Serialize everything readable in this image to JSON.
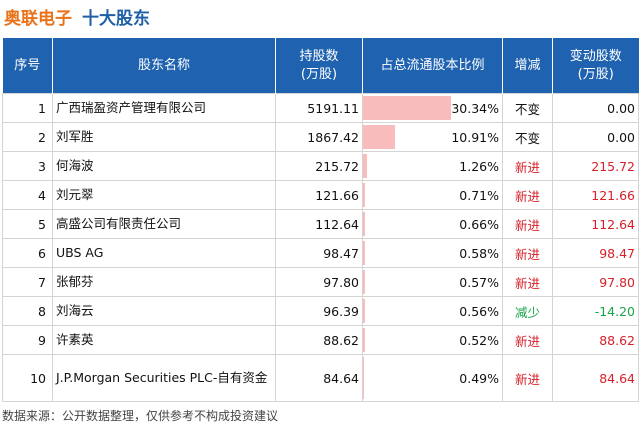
{
  "header": {
    "company": "奥联电子",
    "section": "十大股东"
  },
  "table": {
    "columns": [
      "序号",
      "股东名称",
      "持股数\n(万股)",
      "占总流通股本比例",
      "增减",
      "变动股数\n(万股)"
    ],
    "rows": [
      {
        "rank": "1",
        "name": "广西瑞盈资产管理有限公司",
        "shares": "5191.11",
        "ratio": "30.34%",
        "ratio_value": 30.34,
        "change": "不变",
        "change_type": "same",
        "delta": "0.00",
        "delta_type": "zero"
      },
      {
        "rank": "2",
        "name": "刘军胜",
        "shares": "1867.42",
        "ratio": "10.91%",
        "ratio_value": 10.91,
        "change": "不变",
        "change_type": "same",
        "delta": "0.00",
        "delta_type": "zero"
      },
      {
        "rank": "3",
        "name": "何海波",
        "shares": "215.72",
        "ratio": "1.26%",
        "ratio_value": 1.26,
        "change": "新进",
        "change_type": "new",
        "delta": "215.72",
        "delta_type": "pos"
      },
      {
        "rank": "4",
        "name": "刘元翠",
        "shares": "121.66",
        "ratio": "0.71%",
        "ratio_value": 0.71,
        "change": "新进",
        "change_type": "new",
        "delta": "121.66",
        "delta_type": "pos"
      },
      {
        "rank": "5",
        "name": "高盛公司有限责任公司",
        "shares": "112.64",
        "ratio": "0.66%",
        "ratio_value": 0.66,
        "change": "新进",
        "change_type": "new",
        "delta": "112.64",
        "delta_type": "pos"
      },
      {
        "rank": "6",
        "name": "UBS AG",
        "shares": "98.47",
        "ratio": "0.58%",
        "ratio_value": 0.58,
        "change": "新进",
        "change_type": "new",
        "delta": "98.47",
        "delta_type": "pos"
      },
      {
        "rank": "7",
        "name": "张郁芬",
        "shares": "97.80",
        "ratio": "0.57%",
        "ratio_value": 0.57,
        "change": "新进",
        "change_type": "new",
        "delta": "97.80",
        "delta_type": "pos"
      },
      {
        "rank": "8",
        "name": "刘海云",
        "shares": "96.39",
        "ratio": "0.56%",
        "ratio_value": 0.56,
        "change": "减少",
        "change_type": "down",
        "delta": "-14.20",
        "delta_type": "neg"
      },
      {
        "rank": "9",
        "name": "许素英",
        "shares": "88.62",
        "ratio": "0.52%",
        "ratio_value": 0.52,
        "change": "新进",
        "change_type": "new",
        "delta": "88.62",
        "delta_type": "pos"
      },
      {
        "rank": "10",
        "name": "J.P.Morgan Securities PLC-自有资金",
        "shares": "84.64",
        "ratio": "0.49%",
        "ratio_value": 0.49,
        "change": "新进",
        "change_type": "new",
        "delta": "84.64",
        "delta_type": "pos"
      }
    ]
  },
  "footnote": "数据来源：公开数据整理，仅供参考不构成投资建议",
  "colors": {
    "title_company": "#e8731a",
    "title_section": "#1f5fa8",
    "header_bg": "#1f62b0",
    "ratio_bar": "#f8bcbc",
    "increase": "#d6212a",
    "decrease": "#17a34a"
  }
}
